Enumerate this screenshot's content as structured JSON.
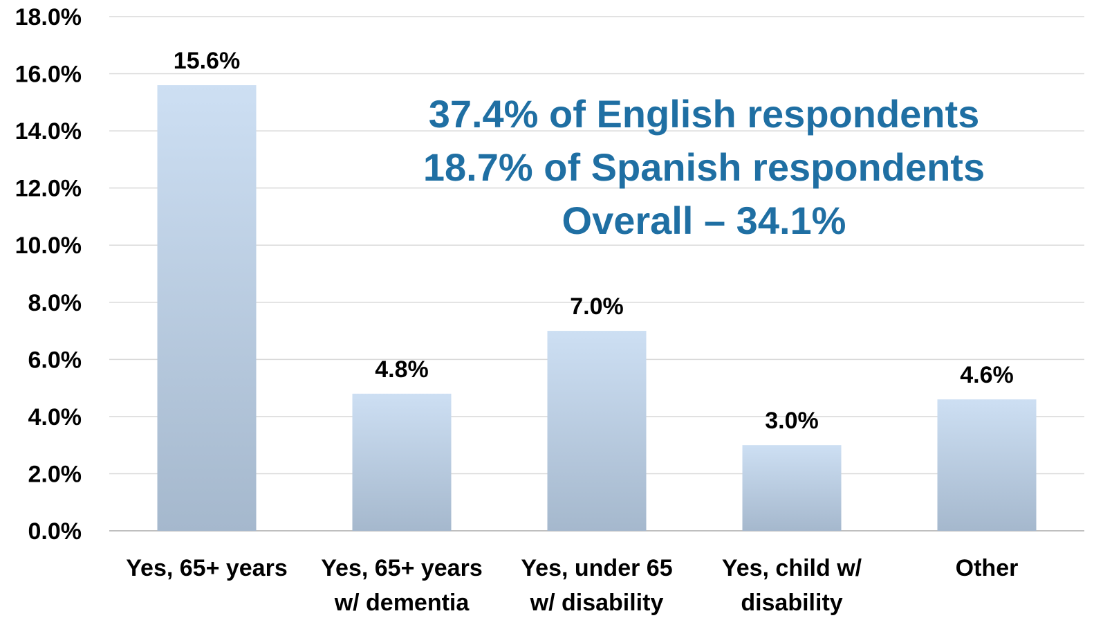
{
  "chart_data": {
    "type": "bar",
    "categories": [
      [
        "Yes, 65+ years"
      ],
      [
        "Yes, 65+ years",
        "w/ dementia"
      ],
      [
        "Yes, under 65",
        "w/ disability"
      ],
      [
        "Yes, child w/",
        "disability"
      ],
      [
        "Other"
      ]
    ],
    "values": [
      15.6,
      4.8,
      7.0,
      3.0,
      4.6
    ],
    "value_labels": [
      "15.6%",
      "4.8%",
      "7.0%",
      "3.0%",
      "4.6%"
    ],
    "ylim": [
      0,
      18
    ],
    "yticks": [
      0,
      2,
      4,
      6,
      8,
      10,
      12,
      14,
      16,
      18
    ],
    "ytick_labels": [
      "0.0%",
      "2.0%",
      "4.0%",
      "6.0%",
      "8.0%",
      "10.0%",
      "12.0%",
      "14.0%",
      "16.0%",
      "18.0%"
    ],
    "grid": true,
    "bar_gradient": {
      "top": "#cddff3",
      "bottom": "#a5b8cd"
    },
    "annotation": {
      "lines": [
        "37.4% of English respondents",
        "18.7% of Spanish respondents",
        "Overall – 34.1%"
      ],
      "color": "#1f6fa3"
    }
  }
}
